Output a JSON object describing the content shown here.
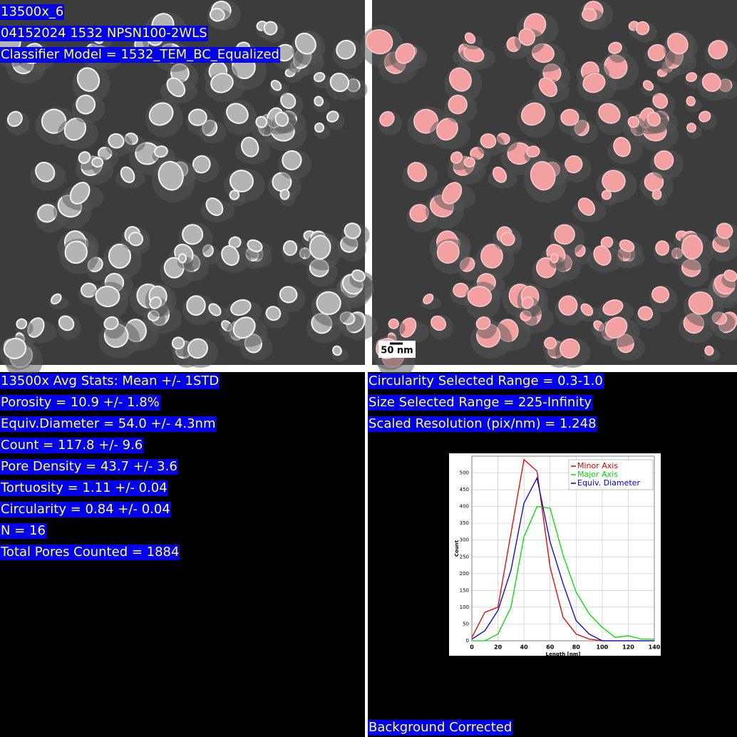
{
  "image_labels": [
    "13500x_6",
    "04152024 1532 NPSN100-2WLS",
    "Classifier Model = 1532_TEM_BC_Equalized"
  ],
  "scale_bar": "50 nm",
  "stats": [
    "13500x Avg Stats: Mean +/- 1STD",
    "Porosity = 10.9 +/- 1.8%",
    "Equiv.Diameter = 54.0 +/- 4.3nm",
    "Count = 117.8 +/- 9.6",
    "Pore Density = 43.7 +/- 3.6",
    "Tortuosity = 1.11 +/- 0.04",
    "Circularity = 0.84 +/- 0.04",
    "N = 16",
    "Total Pores Counted = 1884"
  ],
  "settings": [
    "Circularity Selected Range = 0.3-1.0",
    "Size Selected Range = 225-Infinity",
    "Scaled Resolution (pix/nm) = 1.248"
  ],
  "footer": "Background Corrected",
  "chart_data": {
    "type": "line",
    "x_label": "Length [nm]",
    "y_label": "Count",
    "x": [
      0,
      10,
      20,
      30,
      40,
      50,
      60,
      70,
      80,
      90,
      100,
      110,
      120,
      130,
      140
    ],
    "series": [
      {
        "name": "Minor Axis",
        "color": "#e00000",
        "values": [
          10,
          85,
          100,
          320,
          540,
          505,
          220,
          70,
          20,
          5,
          0,
          0,
          0,
          0,
          0
        ]
      },
      {
        "name": "Major Axis",
        "color": "#00dd00",
        "values": [
          0,
          0,
          20,
          100,
          310,
          400,
          395,
          255,
          145,
          80,
          40,
          10,
          15,
          5,
          5
        ]
      },
      {
        "name": "Equiv. Diameter",
        "color": "#0000cc",
        "values": [
          5,
          30,
          90,
          210,
          410,
          485,
          295,
          170,
          60,
          20,
          0,
          0,
          0,
          0,
          0
        ]
      }
    ],
    "xlim": [
      0,
      140
    ],
    "ylim": [
      0,
      550
    ],
    "xticks": [
      0,
      20,
      40,
      60,
      80,
      100,
      120,
      140
    ],
    "yticks": [
      0,
      50,
      100,
      150,
      200,
      250,
      300,
      350,
      400,
      450,
      500
    ],
    "grid": true,
    "legend": "top-right"
  }
}
